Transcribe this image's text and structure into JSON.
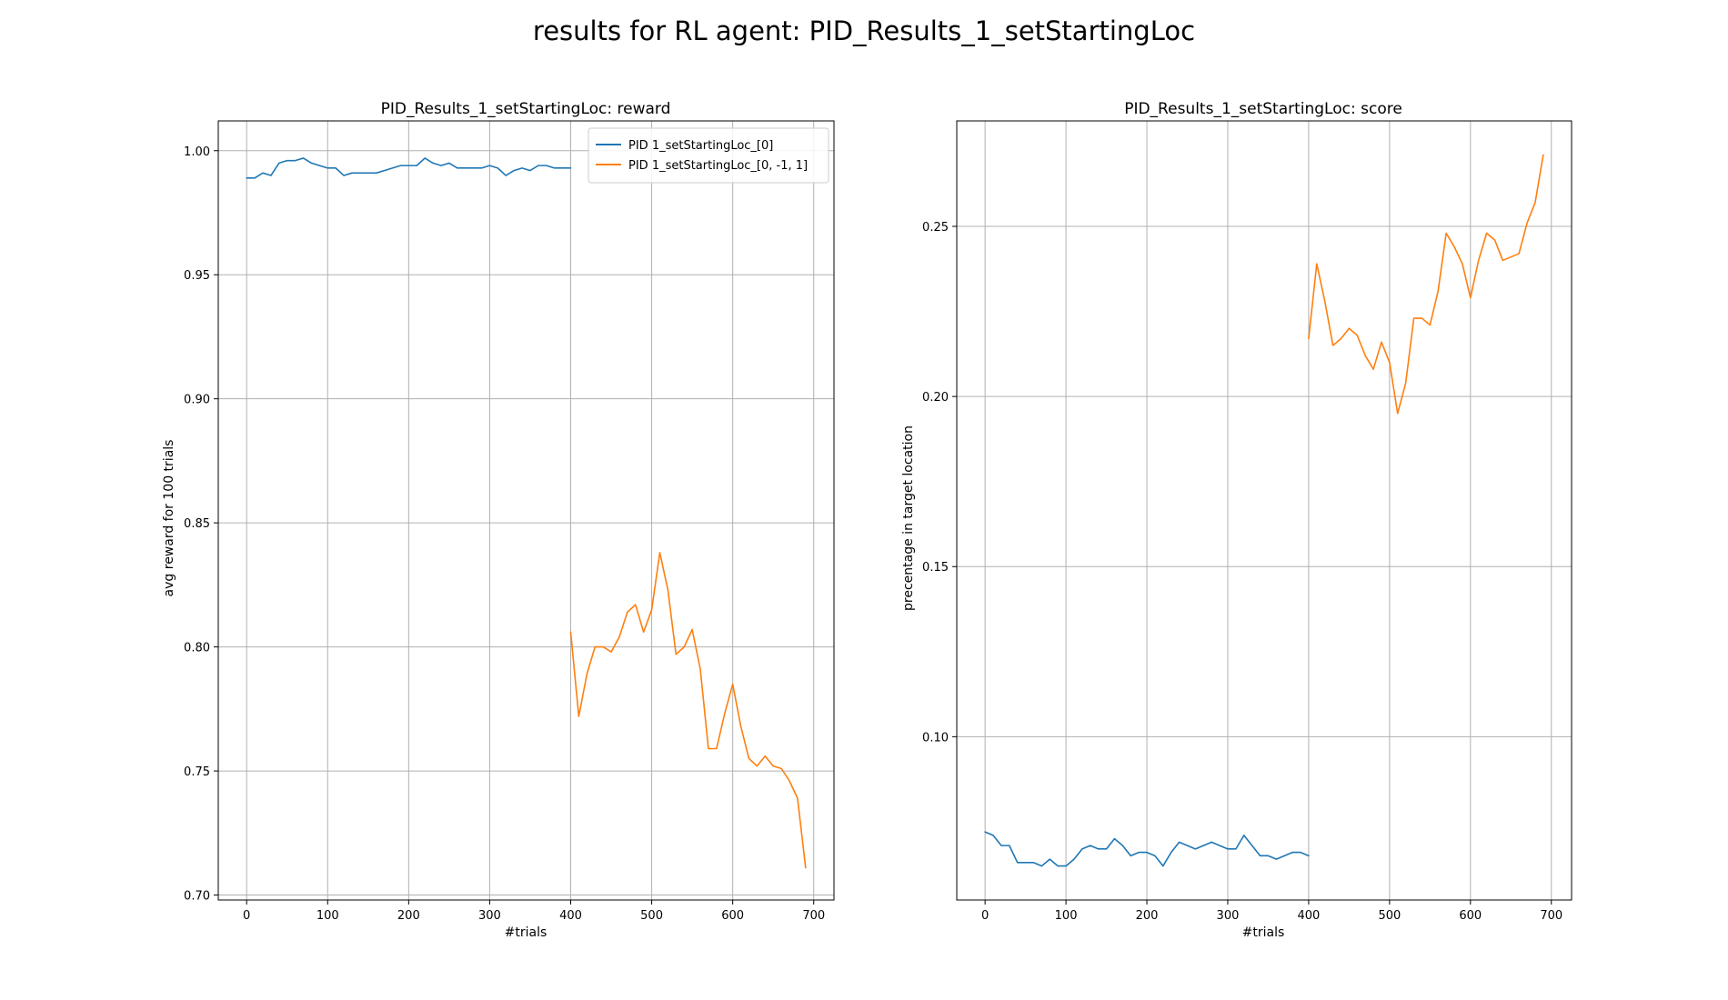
{
  "figure": {
    "suptitle": "results for RL agent: PID_Results_1_setStartingLoc"
  },
  "chart_data": [
    {
      "type": "line",
      "title": "PID_Results_1_setStartingLoc: reward",
      "xlabel": "#trials",
      "ylabel": "avg reward for 100 trials",
      "xlim": [
        -35,
        725
      ],
      "ylim": [
        0.698,
        1.012
      ],
      "xticks": [
        0,
        100,
        200,
        300,
        400,
        500,
        600,
        700
      ],
      "yticks": [
        0.7,
        0.75,
        0.8,
        0.85,
        0.9,
        0.95,
        1.0
      ],
      "ytick_labels": [
        "0.70",
        "0.75",
        "0.80",
        "0.85",
        "0.90",
        "0.95",
        "1.00"
      ],
      "grid": true,
      "legend": "top-right",
      "series": [
        {
          "name": "PID 1_setStartingLoc_[0]",
          "color": "#1f77b4",
          "x": [
            0,
            10,
            20,
            30,
            40,
            50,
            60,
            70,
            80,
            90,
            100,
            110,
            120,
            130,
            140,
            150,
            160,
            170,
            180,
            190,
            200,
            210,
            220,
            230,
            240,
            250,
            260,
            270,
            280,
            290,
            300,
            310,
            320,
            330,
            340,
            350,
            360,
            370,
            380,
            390,
            400
          ],
          "y": [
            0.989,
            0.989,
            0.991,
            0.99,
            0.995,
            0.996,
            0.996,
            0.997,
            0.995,
            0.994,
            0.993,
            0.993,
            0.99,
            0.991,
            0.991,
            0.991,
            0.991,
            0.992,
            0.993,
            0.994,
            0.994,
            0.994,
            0.997,
            0.995,
            0.994,
            0.995,
            0.993,
            0.993,
            0.993,
            0.993,
            0.994,
            0.993,
            0.99,
            0.992,
            0.993,
            0.992,
            0.994,
            0.994,
            0.993,
            0.993,
            0.993
          ]
        },
        {
          "name": "PID 1_setStartingLoc_[0, -1, 1]",
          "color": "#ff7f0e",
          "x": [
            400,
            410,
            420,
            430,
            440,
            450,
            460,
            470,
            480,
            490,
            500,
            510,
            520,
            530,
            540,
            550,
            560,
            570,
            580,
            590,
            600,
            610,
            620,
            630,
            640,
            650,
            660,
            670,
            680,
            690
          ],
          "y": [
            0.806,
            0.772,
            0.789,
            0.8,
            0.8,
            0.798,
            0.804,
            0.814,
            0.817,
            0.806,
            0.815,
            0.838,
            0.823,
            0.797,
            0.8,
            0.807,
            0.791,
            0.759,
            0.759,
            0.773,
            0.785,
            0.768,
            0.755,
            0.752,
            0.756,
            0.752,
            0.751,
            0.746,
            0.739,
            0.711
          ]
        }
      ]
    },
    {
      "type": "line",
      "title": "PID_Results_1_setStartingLoc: score",
      "xlabel": "#trials",
      "ylabel": "precentage in target location",
      "xlim": [
        -35,
        725
      ],
      "ylim": [
        0.052,
        0.281
      ],
      "xticks": [
        0,
        100,
        200,
        300,
        400,
        500,
        600,
        700
      ],
      "yticks": [
        0.1,
        0.15,
        0.2,
        0.25
      ],
      "ytick_labels": [
        "0.10",
        "0.15",
        "0.20",
        "0.25"
      ],
      "grid": true,
      "legend": "none",
      "series": [
        {
          "color": "#1f77b4",
          "x": [
            0,
            10,
            20,
            30,
            40,
            50,
            60,
            70,
            80,
            90,
            100,
            110,
            120,
            130,
            140,
            150,
            160,
            170,
            180,
            190,
            200,
            210,
            220,
            230,
            240,
            250,
            260,
            270,
            280,
            290,
            300,
            310,
            320,
            330,
            340,
            350,
            360,
            370,
            380,
            390,
            400
          ],
          "y": [
            0.072,
            0.071,
            0.068,
            0.068,
            0.063,
            0.063,
            0.063,
            0.062,
            0.064,
            0.062,
            0.062,
            0.064,
            0.067,
            0.068,
            0.067,
            0.067,
            0.07,
            0.068,
            0.065,
            0.066,
            0.066,
            0.065,
            0.062,
            0.066,
            0.069,
            0.068,
            0.067,
            0.068,
            0.069,
            0.068,
            0.067,
            0.067,
            0.071,
            0.068,
            0.065,
            0.065,
            0.064,
            0.065,
            0.066,
            0.066,
            0.065
          ]
        },
        {
          "color": "#ff7f0e",
          "x": [
            400,
            410,
            420,
            430,
            440,
            450,
            460,
            470,
            480,
            490,
            500,
            510,
            520,
            530,
            540,
            550,
            560,
            570,
            580,
            590,
            600,
            610,
            620,
            630,
            640,
            650,
            660,
            670,
            680,
            690
          ],
          "y": [
            0.217,
            0.239,
            0.228,
            0.215,
            0.217,
            0.22,
            0.218,
            0.212,
            0.208,
            0.216,
            0.21,
            0.195,
            0.204,
            0.223,
            0.223,
            0.221,
            0.231,
            0.248,
            0.244,
            0.239,
            0.229,
            0.24,
            0.248,
            0.246,
            0.24,
            0.241,
            0.242,
            0.251,
            0.257,
            0.271
          ]
        }
      ]
    }
  ]
}
